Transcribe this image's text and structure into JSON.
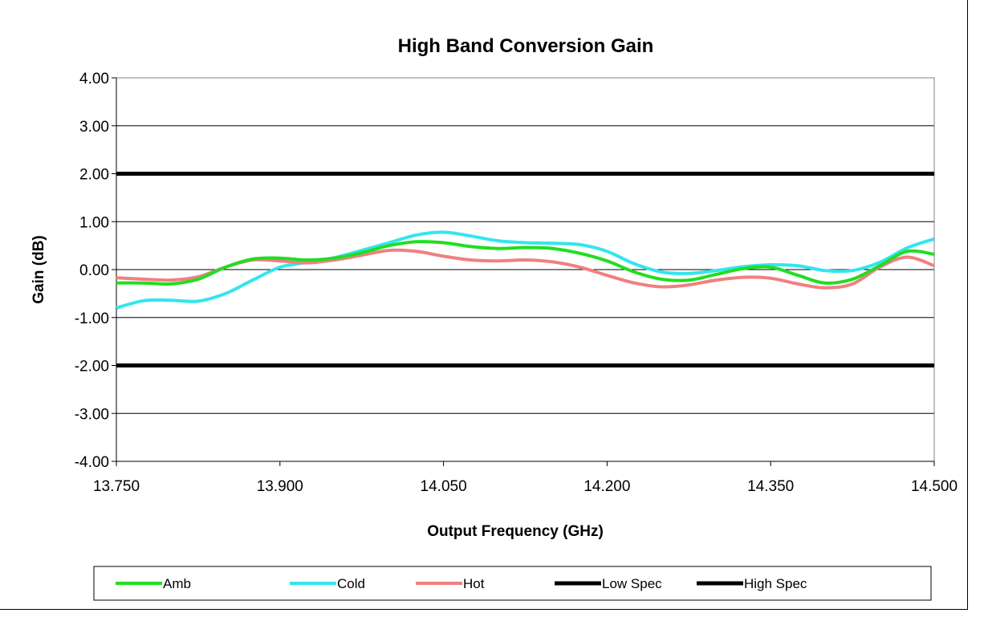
{
  "chart_data": {
    "type": "line",
    "title": "High Band Conversion Gain",
    "xlabel": "Output Frequency (GHz)",
    "ylabel": "Gain (dB)",
    "xlim": [
      13.75,
      14.5
    ],
    "ylim": [
      -4,
      4
    ],
    "x_ticks": [
      "13.750",
      "13.900",
      "14.050",
      "14.200",
      "14.350",
      "14.500"
    ],
    "y_ticks": [
      "-4.00",
      "-3.00",
      "-2.00",
      "-1.00",
      "0.00",
      "1.00",
      "2.00",
      "3.00",
      "4.00"
    ],
    "grid": "horizontal",
    "legend_position": "bottom",
    "x": [
      13.75,
      13.775,
      13.8,
      13.825,
      13.85,
      13.875,
      13.9,
      13.925,
      13.95,
      13.975,
      14.0,
      14.025,
      14.05,
      14.075,
      14.1,
      14.125,
      14.15,
      14.175,
      14.2,
      14.225,
      14.25,
      14.275,
      14.3,
      14.325,
      14.35,
      14.375,
      14.4,
      14.425,
      14.45,
      14.475,
      14.5
    ],
    "series": [
      {
        "name": "Amb",
        "color": "#22dd22",
        "values": [
          -0.28,
          -0.28,
          -0.3,
          -0.2,
          0.05,
          0.22,
          0.24,
          0.2,
          0.24,
          0.35,
          0.5,
          0.58,
          0.56,
          0.48,
          0.44,
          0.46,
          0.44,
          0.34,
          0.18,
          -0.05,
          -0.2,
          -0.22,
          -0.1,
          0.02,
          0.05,
          -0.12,
          -0.28,
          -0.2,
          0.08,
          0.38,
          0.32
        ]
      },
      {
        "name": "Cold",
        "color": "#33e5ee",
        "values": [
          -0.8,
          -0.65,
          -0.64,
          -0.66,
          -0.5,
          -0.22,
          0.05,
          0.15,
          0.25,
          0.4,
          0.56,
          0.72,
          0.78,
          0.7,
          0.6,
          0.56,
          0.55,
          0.52,
          0.38,
          0.12,
          -0.05,
          -0.08,
          -0.02,
          0.06,
          0.1,
          0.08,
          -0.02,
          -0.02,
          0.15,
          0.45,
          0.64
        ]
      },
      {
        "name": "Hot",
        "color": "#f08080",
        "values": [
          -0.17,
          -0.2,
          -0.22,
          -0.15,
          0.05,
          0.2,
          0.18,
          0.14,
          0.2,
          0.3,
          0.4,
          0.38,
          0.28,
          0.2,
          0.18,
          0.2,
          0.16,
          0.05,
          -0.12,
          -0.28,
          -0.36,
          -0.32,
          -0.22,
          -0.16,
          -0.18,
          -0.3,
          -0.38,
          -0.3,
          0.05,
          0.26,
          0.08
        ]
      },
      {
        "name": "Low Spec",
        "color": "#000000",
        "values": [
          -2,
          -2,
          -2,
          -2,
          -2,
          -2,
          -2,
          -2,
          -2,
          -2,
          -2,
          -2,
          -2,
          -2,
          -2,
          -2,
          -2,
          -2,
          -2,
          -2,
          -2,
          -2,
          -2,
          -2,
          -2,
          -2,
          -2,
          -2,
          -2,
          -2,
          -2
        ]
      },
      {
        "name": "High Spec",
        "color": "#000000",
        "values": [
          2,
          2,
          2,
          2,
          2,
          2,
          2,
          2,
          2,
          2,
          2,
          2,
          2,
          2,
          2,
          2,
          2,
          2,
          2,
          2,
          2,
          2,
          2,
          2,
          2,
          2,
          2,
          2,
          2,
          2,
          2
        ]
      }
    ]
  }
}
